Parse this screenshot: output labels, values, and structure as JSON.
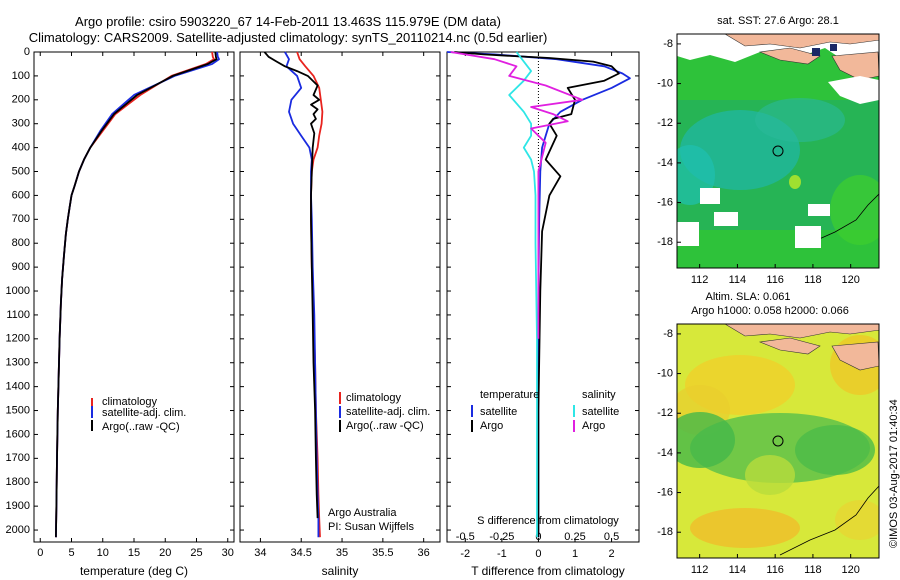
{
  "header": {
    "line1": "Argo profile: csiro 5903220_67 14-Feb-2011 13.463S 115.979E (DM data)",
    "line2": "Climatology: CARS2009. Satellite-adjusted climatology: synTS_20110214.nc (0.5d earlier)"
  },
  "credit": "©IMOS 03-Aug-2017 01:40:34",
  "colors": {
    "climatology": "#e8231e",
    "satellite": "#1a2be0",
    "argo": "#000000",
    "sal_satellite": "#2ee6e6",
    "sal_argo": "#e020e0"
  },
  "chart_data": [
    {
      "type": "line",
      "title": "",
      "xlabel": "temperature (deg C)",
      "ylabel": "",
      "xlim": [
        -1,
        31
      ],
      "ylim": [
        2050,
        0
      ],
      "xticks": [
        0,
        5,
        10,
        15,
        20,
        25,
        30
      ],
      "xticklabels": [
        "0",
        "5",
        "10",
        "15",
        "20",
        "25",
        "30"
      ],
      "yticks": [
        0,
        100,
        200,
        300,
        400,
        500,
        600,
        700,
        800,
        900,
        1000,
        1100,
        1200,
        1300,
        1400,
        1500,
        1600,
        1700,
        1800,
        1900,
        2000
      ],
      "yticklabels": [
        "0",
        "100",
        "200",
        "300",
        "400",
        "500",
        "600",
        "700",
        "800",
        "900",
        "1000",
        "1100",
        "1200",
        "1300",
        "1400",
        "1500",
        "1600",
        "1700",
        "1800",
        "1900",
        "2000"
      ],
      "legend": [
        "climatology",
        "satellite-adj. clim.",
        "Argo(..raw -QC)"
      ],
      "series": [
        {
          "name": "climatology",
          "color": "#e8231e",
          "x": [
            27.5,
            27.6,
            27.8,
            26.5,
            21,
            16,
            12,
            10,
            8,
            7,
            6.2,
            5.5,
            5.0,
            4.7,
            4.4,
            4.1,
            3.8,
            3.5,
            3.3,
            3.1,
            2.95,
            2.8,
            2.68,
            2.58,
            2.5
          ],
          "y": [
            0,
            20,
            30,
            50,
            100,
            180,
            260,
            330,
            400,
            450,
            500,
            560,
            600,
            650,
            700,
            760,
            850,
            950,
            1050,
            1200,
            1350,
            1500,
            1700,
            1900,
            2030
          ]
        },
        {
          "name": "satellite-adj. clim.",
          "color": "#1a2be0",
          "x": [
            28.3,
            28.4,
            28.6,
            27.5,
            21.5,
            15,
            11.5,
            9.6,
            8,
            7,
            6.2,
            5.5,
            5.0,
            4.7,
            4.4,
            4.1,
            3.8,
            3.5,
            3.3,
            3.1,
            2.95,
            2.8,
            2.68,
            2.58,
            2.5
          ],
          "y": [
            0,
            20,
            30,
            50,
            100,
            180,
            260,
            330,
            400,
            450,
            500,
            560,
            600,
            650,
            700,
            760,
            850,
            950,
            1050,
            1200,
            1350,
            1500,
            1700,
            1900,
            2030
          ]
        },
        {
          "name": "Argo(..raw -QC)",
          "color": "#000000",
          "x": [
            28,
            28.1,
            28.2,
            26.8,
            21.2,
            15.5,
            11.8,
            9.8,
            8,
            7,
            6.2,
            5.5,
            5.0,
            4.7,
            4.4,
            4.1,
            3.8,
            3.5,
            3.3,
            3.1,
            2.95,
            2.8,
            2.68,
            2.58,
            2.5
          ],
          "y": [
            0,
            20,
            30,
            50,
            100,
            180,
            260,
            330,
            400,
            450,
            500,
            560,
            600,
            650,
            700,
            760,
            850,
            950,
            1050,
            1200,
            1350,
            1500,
            1700,
            1900,
            2030
          ]
        }
      ]
    },
    {
      "type": "line",
      "title": "",
      "xlabel": "salinity",
      "ylabel": "",
      "xlim": [
        33.75,
        36.2
      ],
      "ylim": [
        2050,
        0
      ],
      "xticks": [
        34,
        34.5,
        35,
        35.5,
        36
      ],
      "xticklabels": [
        "34",
        "34.5",
        "35",
        "35.5",
        "36"
      ],
      "legend": [
        "climatology",
        "satellite-adj. clim.",
        "Argo(..raw -QC)"
      ],
      "annotation": [
        "Argo Australia",
        "PI: Susan Wijffels"
      ],
      "series": [
        {
          "name": "climatology",
          "color": "#e8231e",
          "x": [
            34.45,
            34.48,
            34.55,
            34.65,
            34.72,
            34.74,
            34.76,
            34.75,
            34.72,
            34.7,
            34.65,
            34.63,
            34.62,
            34.62,
            34.63,
            34.65,
            34.67,
            34.68,
            34.7,
            34.71,
            34.72,
            34.73
          ],
          "y": [
            0,
            30,
            60,
            100,
            150,
            200,
            250,
            300,
            350,
            400,
            450,
            500,
            600,
            700,
            900,
            1100,
            1300,
            1500,
            1700,
            1850,
            1950,
            2030
          ]
        },
        {
          "name": "satellite-adj. clim.",
          "color": "#1a2be0",
          "x": [
            34.3,
            34.35,
            34.32,
            34.45,
            34.5,
            34.38,
            34.35,
            34.4,
            34.5,
            34.6,
            34.63,
            34.62,
            34.62,
            34.63,
            34.64,
            34.66,
            34.67,
            34.68,
            34.69,
            34.7,
            34.71,
            34.71
          ],
          "y": [
            0,
            30,
            60,
            100,
            150,
            200,
            250,
            300,
            350,
            400,
            450,
            500,
            600,
            700,
            900,
            1100,
            1300,
            1500,
            1700,
            1850,
            1950,
            2030
          ]
        },
        {
          "name": "Argo(..raw -QC)",
          "color": "#000000",
          "x": [
            34.05,
            34.1,
            34.2,
            34.3,
            34.45,
            34.58,
            34.7,
            34.65,
            34.72,
            34.62,
            34.7,
            34.65,
            34.68,
            34.62,
            34.66,
            34.64,
            34.63,
            34.62,
            34.62,
            34.63,
            34.64,
            34.65,
            34.67,
            34.68,
            34.69,
            34.7
          ],
          "y": [
            0,
            20,
            40,
            60,
            80,
            100,
            140,
            180,
            200,
            220,
            240,
            260,
            280,
            300,
            340,
            400,
            500,
            600,
            700,
            900,
            1100,
            1300,
            1500,
            1700,
            1850,
            1950
          ]
        }
      ]
    },
    {
      "type": "line",
      "title": "",
      "xlabel": "T difference from climatology",
      "xlabel_top": "S difference from climatology",
      "ylabel": "",
      "xlim": [
        -2.5,
        2.75
      ],
      "ylim": [
        2050,
        0
      ],
      "xticks": [
        -2,
        -1,
        0,
        1,
        2
      ],
      "xticklabels": [
        "-2",
        "-1",
        "0",
        "1",
        "2"
      ],
      "sticks": [
        -0.5,
        -0.25,
        0,
        0.25,
        0.5
      ],
      "sticklabels": [
        "-0.5",
        "-0.25",
        "0",
        "0.25",
        "0.5"
      ],
      "legend_left_title": "temperature",
      "legend_right_title": "salinity",
      "legend_left": [
        "satellite",
        "Argo"
      ],
      "legend_right": [
        "satellite",
        "Argo"
      ],
      "series": [
        {
          "name": "T satellite",
          "color": "#1a2be0",
          "x": [
            -2.5,
            -1.2,
            0.5,
            1.8,
            2.3,
            2.5,
            2.0,
            1.2,
            0.6,
            0.3,
            0.2,
            0.1,
            0.05,
            0.02,
            0.0,
            0.0,
            0.0
          ],
          "y": [
            0,
            10,
            30,
            60,
            90,
            110,
            150,
            200,
            250,
            300,
            350,
            400,
            500,
            700,
            1000,
            1500,
            2030
          ]
        },
        {
          "name": "T Argo",
          "color": "#000000",
          "x": [
            -2.3,
            -1.5,
            0.3,
            1.5,
            2.0,
            2.2,
            1.8,
            0.8,
            1.0,
            0.9,
            0.4,
            0.3,
            0.5,
            0.2,
            0.6,
            0.3,
            0.1,
            0.05,
            0.0,
            0.0
          ],
          "y": [
            0,
            10,
            25,
            40,
            60,
            90,
            120,
            150,
            200,
            260,
            280,
            300,
            350,
            450,
            520,
            600,
            750,
            1000,
            1500,
            2030
          ]
        },
        {
          "name": "S satellite",
          "color": "#2ee6e6",
          "x": [
            -0.15,
            -0.1,
            -0.05,
            -0.1,
            -0.2,
            -0.1,
            -0.05,
            -0.05,
            -0.1,
            -0.05,
            -0.03,
            -0.02,
            -0.02,
            -0.01,
            -0.01
          ],
          "y": [
            0,
            40,
            80,
            120,
            180,
            250,
            300,
            350,
            400,
            450,
            500,
            600,
            800,
            1200,
            2030
          ]
        },
        {
          "name": "S Argo",
          "color": "#e020e0",
          "x": [
            -0.6,
            -0.3,
            -0.15,
            -0.2,
            0.05,
            0.3,
            -0.05,
            0.1,
            0.2,
            -0.05,
            0.05,
            0.0,
            0.0,
            0.0
          ],
          "y": [
            0,
            30,
            60,
            100,
            140,
            200,
            230,
            260,
            290,
            320,
            380,
            500,
            800,
            1200
          ]
        }
      ]
    },
    {
      "type": "heatmap",
      "title": "sat. SST: 27.6 Argo: 28.1",
      "xticks": [
        112,
        114,
        116,
        118,
        120
      ],
      "xticklabels": [
        "112",
        "114",
        "116",
        "118",
        "120"
      ],
      "yticks": [
        -8,
        -10,
        -12,
        -14,
        -16,
        -18
      ],
      "yticklabels": [
        "-8",
        "-10",
        "-12",
        "-14",
        "-16",
        "-18"
      ],
      "xlim": [
        110.8,
        121.5
      ],
      "ylim": [
        -19.3,
        -7.5
      ],
      "marker": {
        "lon": 115.979,
        "lat": -13.463
      }
    },
    {
      "type": "heatmap",
      "title_lines": [
        "Altim. SLA: 0.061",
        "Argo h1000: 0.058 h2000: 0.066"
      ],
      "xticks": [
        112,
        114,
        116,
        118,
        120
      ],
      "xticklabels": [
        "112",
        "114",
        "116",
        "118",
        "120"
      ],
      "yticks": [
        -8,
        -10,
        -12,
        -14,
        -16,
        -18
      ],
      "yticklabels": [
        "-8",
        "-10",
        "-12",
        "-14",
        "-16",
        "-18"
      ],
      "xlim": [
        110.8,
        121.5
      ],
      "ylim": [
        -19.3,
        -7.5
      ],
      "marker": {
        "lon": 115.979,
        "lat": -13.463
      }
    }
  ]
}
